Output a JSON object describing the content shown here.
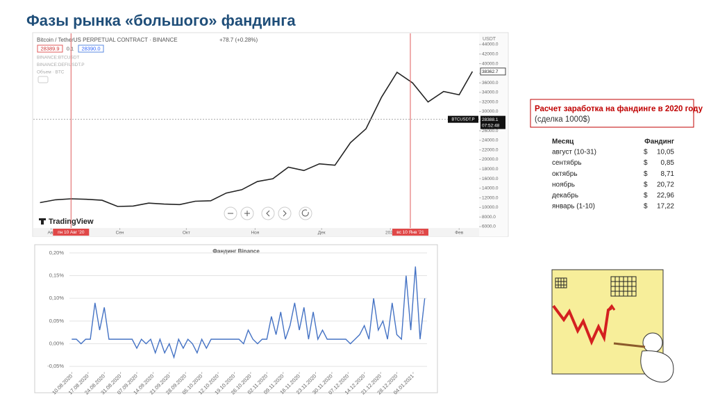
{
  "title": "Фазы рынка «большого» фандинга",
  "chart_data": [
    {
      "type": "line",
      "symbol": "Bitcoin / TetherUS PERPETUAL CONTRACT · BINANCE",
      "change": "+78.7 (+0.28%)",
      "bid": "28389.9",
      "spread": "0.1",
      "ask": "28390.0",
      "legend_items": [
        "BINANCE:BTCUSDT",
        "BINANCE:DEFIUSDT.P",
        "Объем · BTC"
      ],
      "y_unit": "USDT",
      "brand": "TradingView",
      "color": "#222222",
      "x": [
        "2020-07-27",
        "2020-08-03",
        "2020-08-10",
        "2020-08-17",
        "2020-08-24",
        "2020-08-31",
        "2020-09-07",
        "2020-09-14",
        "2020-09-21",
        "2020-09-28",
        "2020-10-05",
        "2020-10-12",
        "2020-10-19",
        "2020-10-26",
        "2020-11-02",
        "2020-11-09",
        "2020-11-16",
        "2020-11-23",
        "2020-11-30",
        "2020-12-07",
        "2020-12-14",
        "2020-12-21",
        "2020-12-28",
        "2021-01-04",
        "2021-01-11",
        "2021-01-18",
        "2021-01-25",
        "2021-02-01",
        "2021-02-07"
      ],
      "values": [
        11000,
        11600,
        11800,
        11700,
        11500,
        10200,
        10300,
        10900,
        10700,
        10600,
        11300,
        11400,
        13000,
        13700,
        15400,
        16000,
        18400,
        17700,
        19100,
        18800,
        23500,
        26400,
        33000,
        38200,
        36000,
        32000,
        34200,
        33500,
        38362.7
      ],
      "xlim": [
        "2020-07-24",
        "2021-02-10"
      ],
      "xticks": [
        {
          "value": "2020-08-01",
          "label": "Авг"
        },
        {
          "value": "2020-09-01",
          "label": "Сен"
        },
        {
          "value": "2020-10-01",
          "label": "Окт"
        },
        {
          "value": "2020-11-01",
          "label": "Ноя"
        },
        {
          "value": "2020-12-01",
          "label": "Дек"
        },
        {
          "value": "2021-01-01",
          "label": "2021"
        },
        {
          "value": "2021-02-01",
          "label": "Фев"
        }
      ],
      "ylim": [
        4840,
        46030
      ],
      "yticks": [
        {
          "value": 6000,
          "label": "6000.0"
        },
        {
          "value": 8000,
          "label": "8000.0"
        },
        {
          "value": 10000,
          "label": "10000.0"
        },
        {
          "value": 12000,
          "label": "12000.0"
        },
        {
          "value": 14000,
          "label": "14000.0"
        },
        {
          "value": 16000,
          "label": "16000.0"
        },
        {
          "value": 18000,
          "label": "18000.0"
        },
        {
          "value": 20000,
          "label": "20000.0"
        },
        {
          "value": 22000,
          "label": "22000.0"
        },
        {
          "value": 24000,
          "label": "24000.0"
        },
        {
          "value": 26000,
          "label": "26000.0"
        },
        {
          "value": 28000,
          "label": "28000.0"
        },
        {
          "value": 30000,
          "label": "30000.0"
        },
        {
          "value": 32000,
          "label": "32000.0"
        },
        {
          "value": 34000,
          "label": "34000.0"
        },
        {
          "value": 36000,
          "label": "36000.0"
        },
        {
          "value": 38000,
          "label": "38000.0"
        },
        {
          "value": 40000,
          "label": "40000.0"
        },
        {
          "value": 42000,
          "label": "42000.0"
        },
        {
          "value": 44000,
          "label": "44000.0"
        }
      ],
      "markers": [
        {
          "x": "2020-08-10",
          "label": "пн 10 Авг '20"
        },
        {
          "x": "2021-01-10",
          "label": "вс 10 Янв '21"
        }
      ],
      "last_price": 38362.7,
      "current_price": 28388.1,
      "current_time": "07:52:48",
      "current_symbol": "BTCUSDT.P"
    },
    {
      "type": "line",
      "title": "Фандинг Binance",
      "color": "#4472c4",
      "x": [
        "2020-08-10",
        "2020-08-12",
        "2020-08-14",
        "2020-08-16",
        "2020-08-18",
        "2020-08-20",
        "2020-08-22",
        "2020-08-24",
        "2020-08-26",
        "2020-08-28",
        "2020-08-30",
        "2020-09-01",
        "2020-09-03",
        "2020-09-05",
        "2020-09-07",
        "2020-09-09",
        "2020-09-11",
        "2020-09-13",
        "2020-09-15",
        "2020-09-17",
        "2020-09-19",
        "2020-09-21",
        "2020-09-23",
        "2020-09-25",
        "2020-09-27",
        "2020-09-29",
        "2020-10-01",
        "2020-10-03",
        "2020-10-05",
        "2020-10-07",
        "2020-10-09",
        "2020-10-11",
        "2020-10-13",
        "2020-10-15",
        "2020-10-17",
        "2020-10-19",
        "2020-10-21",
        "2020-10-23",
        "2020-10-25",
        "2020-10-27",
        "2020-10-29",
        "2020-10-31",
        "2020-11-02",
        "2020-11-04",
        "2020-11-06",
        "2020-11-08",
        "2020-11-10",
        "2020-11-12",
        "2020-11-14",
        "2020-11-16",
        "2020-11-18",
        "2020-11-20",
        "2020-11-22",
        "2020-11-24",
        "2020-11-26",
        "2020-11-28",
        "2020-11-30",
        "2020-12-02",
        "2020-12-04",
        "2020-12-06",
        "2020-12-08",
        "2020-12-10",
        "2020-12-12",
        "2020-12-14",
        "2020-12-16",
        "2020-12-18",
        "2020-12-20",
        "2020-12-22",
        "2020-12-24",
        "2020-12-26",
        "2020-12-28",
        "2020-12-30",
        "2021-01-01",
        "2021-01-03",
        "2021-01-05",
        "2021-01-07",
        "2021-01-09"
      ],
      "values": [
        0.01,
        0.01,
        0.0,
        0.01,
        0.01,
        0.09,
        0.03,
        0.08,
        0.01,
        0.01,
        0.01,
        0.01,
        0.01,
        0.01,
        -0.01,
        0.01,
        0.0,
        0.01,
        -0.02,
        0.01,
        -0.02,
        0.0,
        -0.03,
        0.01,
        -0.01,
        0.01,
        0.0,
        -0.02,
        0.01,
        -0.01,
        0.01,
        0.01,
        0.01,
        0.01,
        0.01,
        0.01,
        0.01,
        0.0,
        0.03,
        0.01,
        0.0,
        0.01,
        0.01,
        0.06,
        0.02,
        0.07,
        0.01,
        0.04,
        0.09,
        0.03,
        0.08,
        0.01,
        0.07,
        0.01,
        0.03,
        0.01,
        0.01,
        0.01,
        0.01,
        0.01,
        0.0,
        0.01,
        0.02,
        0.04,
        0.01,
        0.1,
        0.03,
        0.05,
        0.01,
        0.09,
        0.02,
        0.01,
        0.15,
        0.03,
        0.17,
        0.01,
        0.1
      ],
      "xlim": [
        "2020-08-09",
        "2021-01-10"
      ],
      "xticks": [
        {
          "value": "2020-08-10",
          "label": "10.08.2020"
        },
        {
          "value": "2020-08-17",
          "label": "17.08.2020"
        },
        {
          "value": "2020-08-24",
          "label": "24.08.2020"
        },
        {
          "value": "2020-08-31",
          "label": "31.08.2020"
        },
        {
          "value": "2020-09-07",
          "label": "07.09.2020"
        },
        {
          "value": "2020-09-14",
          "label": "14.09.2020"
        },
        {
          "value": "2020-09-21",
          "label": "21.09.2020"
        },
        {
          "value": "2020-09-28",
          "label": "28.09.2020"
        },
        {
          "value": "2020-10-05",
          "label": "05.10.2020"
        },
        {
          "value": "2020-10-12",
          "label": "12.10.2020"
        },
        {
          "value": "2020-10-19",
          "label": "19.10.2020"
        },
        {
          "value": "2020-10-26",
          "label": "26.10.2020"
        },
        {
          "value": "2020-11-02",
          "label": "02.11.2020"
        },
        {
          "value": "2020-11-09",
          "label": "09.11.2020"
        },
        {
          "value": "2020-11-16",
          "label": "16.11.2020"
        },
        {
          "value": "2020-11-23",
          "label": "23.11.2020"
        },
        {
          "value": "2020-11-30",
          "label": "30.11.2020"
        },
        {
          "value": "2020-12-07",
          "label": "07.12.2020"
        },
        {
          "value": "2020-12-14",
          "label": "14.12.2020"
        },
        {
          "value": "2020-12-21",
          "label": "21.12.2020"
        },
        {
          "value": "2020-12-28",
          "label": "28.12.2020"
        },
        {
          "value": "2021-01-04",
          "label": "04.01.2021"
        }
      ],
      "ylim": [
        -0.062,
        0.212
      ],
      "yticks": [
        {
          "value": -0.05,
          "label": "-0,05%"
        },
        {
          "value": 0,
          "label": "0,00%"
        },
        {
          "value": 0.05,
          "label": "0,05%"
        },
        {
          "value": 0.1,
          "label": "0,10%"
        },
        {
          "value": 0.15,
          "label": "0,15%"
        },
        {
          "value": 0.2,
          "label": "0,20%"
        }
      ],
      "grid": true
    }
  ],
  "table": {
    "title": "Расчет заработка на фандинге в 2020 году",
    "note": "(сделка 1000$)",
    "header": [
      "Месяц",
      "Фандинг"
    ],
    "rows": [
      [
        "август (10-31)",
        "$",
        "10,05"
      ],
      [
        "сентябрь",
        "$",
        "0,85"
      ],
      [
        "октябрь",
        "$",
        "8,71"
      ],
      [
        "ноябрь",
        "$",
        "20,72"
      ],
      [
        "декабрь",
        "$",
        "22,96"
      ],
      [
        "январь (1-10)",
        "$",
        "17,22"
      ]
    ]
  }
}
